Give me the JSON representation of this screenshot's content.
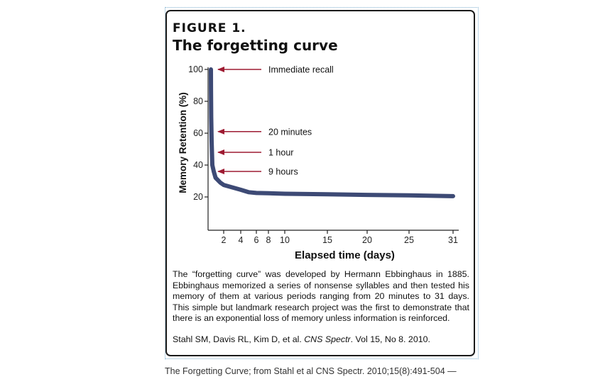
{
  "figure": {
    "number": "FIGURE 1.",
    "title": "The forgetting curve",
    "caption": "The “forgetting curve” was developed by Hermann Ebbinghaus in 1885. Ebbinghaus memorized a series of nonsense syllables and then tested his memory of them at various periods ranging from 20 minutes to 31 days.  This simple but landmark research project was the first to demonstrate that there is an exponential loss of memory unless information is reinforced.",
    "citation_prefix": "Stahl SM, Davis RL, Kim D, et al. ",
    "citation_journal": "CNS Spectr",
    "citation_suffix": ". Vol 15, No 8. 2010."
  },
  "source_caption": "The Forgetting Curve; from Stahl et al CNS Spectr. 2010;15(8):491-504 —",
  "chart_data": {
    "type": "line",
    "title": "The forgetting curve",
    "xlabel": "Elapsed time (days)",
    "ylabel": "Memory Retention (%)",
    "xlim": [
      0,
      31
    ],
    "ylim": [
      0,
      100
    ],
    "x_ticks": [
      2,
      4,
      6,
      8,
      10,
      15,
      20,
      25,
      31
    ],
    "y_ticks": [
      20,
      40,
      60,
      80,
      100
    ],
    "grid": false,
    "series": [
      {
        "color": "#3d4a75",
        "x": [
          0,
          0.01,
          0.04,
          0.1,
          0.2,
          0.4,
          0.8,
          1.5,
          2,
          3,
          4,
          5,
          6,
          8,
          10,
          15,
          20,
          25,
          31
        ],
        "y": [
          100,
          88,
          70,
          55,
          40,
          36,
          32,
          29,
          27.5,
          26,
          24.5,
          23,
          22.5,
          22.3,
          22,
          21.7,
          21.3,
          21,
          20.5
        ]
      }
    ],
    "annotations": [
      {
        "label": "Immediate recall",
        "y": 100
      },
      {
        "label": "20 minutes",
        "y": 61
      },
      {
        "label": "1 hour",
        "y": 48
      },
      {
        "label": "9 hours",
        "y": 36
      }
    ],
    "annotation_arrow_color": "#9e1b32"
  }
}
